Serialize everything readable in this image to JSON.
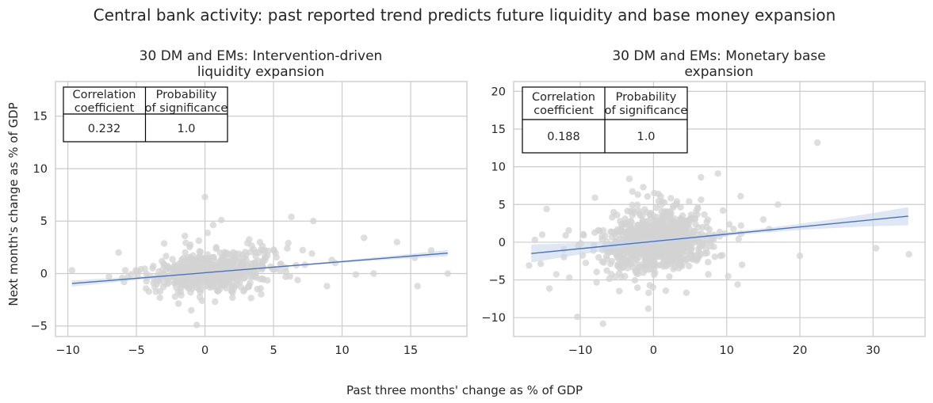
{
  "figure": {
    "title": "Central bank activity: past reported trend predicts future liquidity and base money expansion",
    "xlabel": "Past three months' change as % of GDP",
    "ylabel": "Next month's change as % of GDP"
  },
  "colors": {
    "points": "#d3d3d3",
    "regression_line": "#4c72b0",
    "confidence_band": "#c9d6ec",
    "grid": "#cccccc",
    "table_border": "#000000"
  },
  "chart_data": [
    {
      "type": "scatter",
      "title_line1": "30 DM and EMs: Intervention-driven",
      "title_line2": "liquidity expansion",
      "xlim": [
        -10.9,
        19.1
      ],
      "ylim": [
        -6.0,
        18.3
      ],
      "xticks": [
        -10,
        -5,
        0,
        5,
        10,
        15
      ],
      "xtick_labels": [
        "−10",
        "−5",
        "0",
        "5",
        "10",
        "15"
      ],
      "yticks": [
        -5,
        0,
        5,
        10,
        15
      ],
      "ytick_labels": [
        "−5",
        "0",
        "5",
        "10",
        "15"
      ],
      "grid": true,
      "table": {
        "header1": "Correlation\ncoefficient",
        "header2": "Probability\nof significance",
        "value1": "0.232",
        "value2": "1.0"
      },
      "regression": {
        "x": [
          -9.7,
          17.7
        ],
        "y": [
          -0.95,
          1.95
        ],
        "ci_halfwidth_ends": 0.3
      },
      "points": {
        "seed": 7,
        "n": 560,
        "cx": 0.5,
        "cy": 0.2,
        "sx": 2.2,
        "sy": 0.9,
        "slope": 0.105,
        "xmin": -10.0,
        "xmax": 18.0,
        "ymin": -5.2,
        "ymax": 7.6,
        "extra": [
          [
            -9.7,
            0.3
          ],
          [
            -6.3,
            2.0
          ],
          [
            -5.9,
            -0.8
          ],
          [
            -7.0,
            -0.3
          ],
          [
            0.0,
            7.3
          ],
          [
            1.2,
            5.1
          ],
          [
            6.3,
            5.4
          ],
          [
            7.9,
            5.0
          ],
          [
            11.6,
            3.4
          ],
          [
            14.0,
            3.0
          ],
          [
            15.3,
            1.5
          ],
          [
            16.5,
            2.2
          ],
          [
            17.7,
            0.0
          ],
          [
            15.5,
            -1.2
          ],
          [
            11.0,
            -0.1
          ],
          [
            12.3,
            0.0
          ],
          [
            8.9,
            -1.2
          ],
          [
            -1.0,
            -3.5
          ],
          [
            -0.6,
            -4.9
          ],
          [
            -0.2,
            -2.6
          ],
          [
            4.2,
            2.6
          ],
          [
            6.0,
            2.4
          ],
          [
            -3.0,
            0.9
          ],
          [
            2.0,
            -2.3
          ],
          [
            7.8,
            1.9
          ],
          [
            9.5,
            1.0
          ],
          [
            3.1,
            2.9
          ]
        ]
      }
    },
    {
      "type": "scatter",
      "title_line1": "30 DM and EMs: Monetary base",
      "title_line2": "expansion",
      "xlim": [
        -19.1,
        37.1
      ],
      "ylim": [
        -12.5,
        21.3
      ],
      "xticks": [
        -10,
        0,
        10,
        20,
        30
      ],
      "xtick_labels": [
        "−10",
        "0",
        "10",
        "20",
        "30"
      ],
      "yticks": [
        -10,
        -5,
        0,
        5,
        10,
        15,
        20
      ],
      "ytick_labels": [
        "−10",
        "−5",
        "0",
        "5",
        "10",
        "15",
        "20"
      ],
      "grid": true,
      "table": {
        "header1": "Correlation\ncoefficient",
        "header2": "Probability\nof significance",
        "value1": "0.188",
        "value2": "1.0"
      },
      "regression": {
        "x": [
          -16.7,
          34.8
        ],
        "y": [
          -1.5,
          3.45
        ],
        "ci_halfwidth_ends": 1.2
      },
      "points": {
        "seed": 19,
        "n": 900,
        "cx": 0.3,
        "cy": 0.1,
        "sx": 3.2,
        "sy": 1.9,
        "slope": 0.096,
        "xmin": -17.0,
        "xmax": 35.0,
        "ymin": -11.0,
        "ymax": 13.5,
        "extra": [
          [
            -16.2,
            0.3
          ],
          [
            -17.0,
            -3.1
          ],
          [
            -14.6,
            4.4
          ],
          [
            -11.5,
            -4.7
          ],
          [
            -10.4,
            -9.9
          ],
          [
            -6.9,
            -10.8
          ],
          [
            -3.9,
            -4.5
          ],
          [
            -0.7,
            -8.8
          ],
          [
            -8.0,
            5.9
          ],
          [
            -3.3,
            8.4
          ],
          [
            -1.4,
            7.3
          ],
          [
            0.1,
            6.5
          ],
          [
            6.5,
            8.6
          ],
          [
            8.8,
            9.1
          ],
          [
            11.9,
            6.1
          ],
          [
            12.1,
            -3.0
          ],
          [
            11.5,
            -5.6
          ],
          [
            10.2,
            -4.5
          ],
          [
            15.0,
            3.0
          ],
          [
            17.0,
            5.0
          ],
          [
            20.0,
            -1.8
          ],
          [
            22.4,
            13.2
          ],
          [
            30.4,
            -0.8
          ],
          [
            34.9,
            -1.6
          ],
          [
            -15.2,
            1.0
          ],
          [
            -12.0,
            0.9
          ],
          [
            9.5,
            4.2
          ]
        ]
      }
    }
  ]
}
